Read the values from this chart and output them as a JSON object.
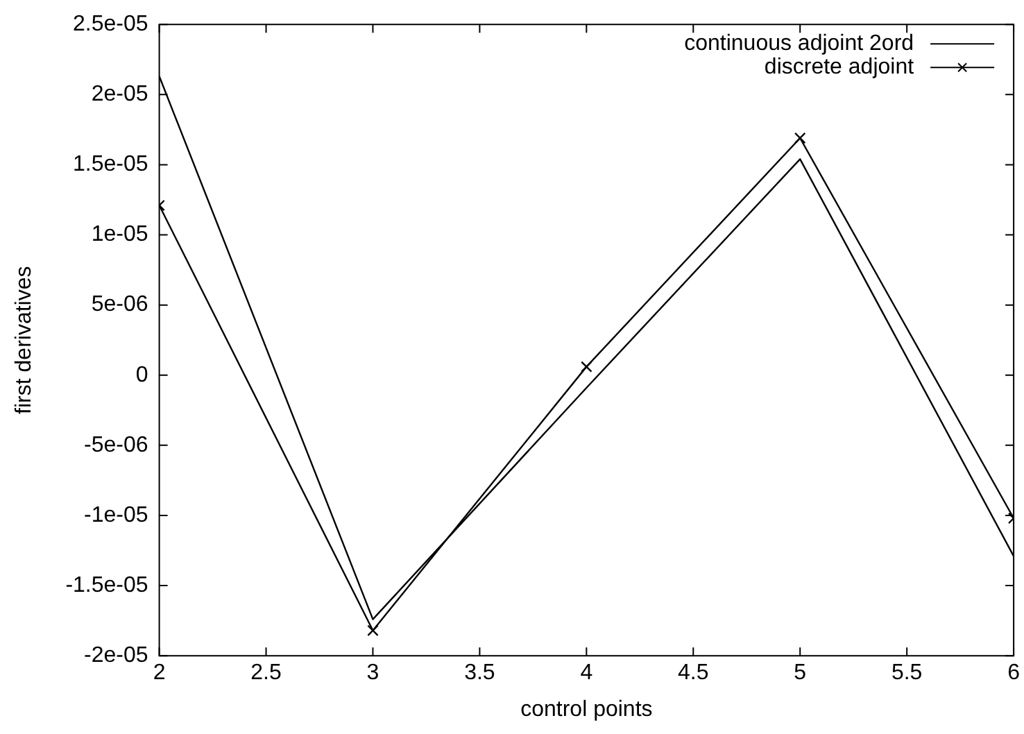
{
  "chart_data": {
    "type": "line",
    "xlabel": "control points",
    "ylabel": "first derivatives",
    "x": [
      2,
      3,
      4,
      5,
      6
    ],
    "series": [
      {
        "name": "continuous adjoint 2ord",
        "color": "#000000",
        "values": [
          2.13e-05,
          -1.74e-05,
          -9e-07,
          1.54e-05,
          -1.29e-05
        ],
        "marker": "none"
      },
      {
        "name": "discrete adjoint",
        "color": "#000000",
        "values": [
          1.21e-05,
          -1.82e-05,
          6e-07,
          1.69e-05,
          -1.02e-05
        ],
        "marker": "cross"
      }
    ],
    "xlim": [
      2,
      6
    ],
    "xticks": [
      2,
      2.5,
      3,
      3.5,
      4,
      4.5,
      5,
      5.5,
      6
    ],
    "ylim": [
      -2e-05,
      2.5e-05
    ],
    "yticks": [
      {
        "value": -2e-05,
        "label": "-2e-05"
      },
      {
        "value": -1.5e-05,
        "label": "-1.5e-05"
      },
      {
        "value": -1e-05,
        "label": "-1e-05"
      },
      {
        "value": -5e-06,
        "label": "-5e-06"
      },
      0,
      {
        "value": 5e-06,
        "label": "5e-06"
      },
      {
        "value": 1e-05,
        "label": "1e-05"
      },
      {
        "value": 1.5e-05,
        "label": "1.5e-05"
      },
      {
        "value": 2e-05,
        "label": "2e-05"
      },
      {
        "value": 2.5e-05,
        "label": "2.5e-05"
      }
    ],
    "legend": "top right",
    "grid": false
  }
}
